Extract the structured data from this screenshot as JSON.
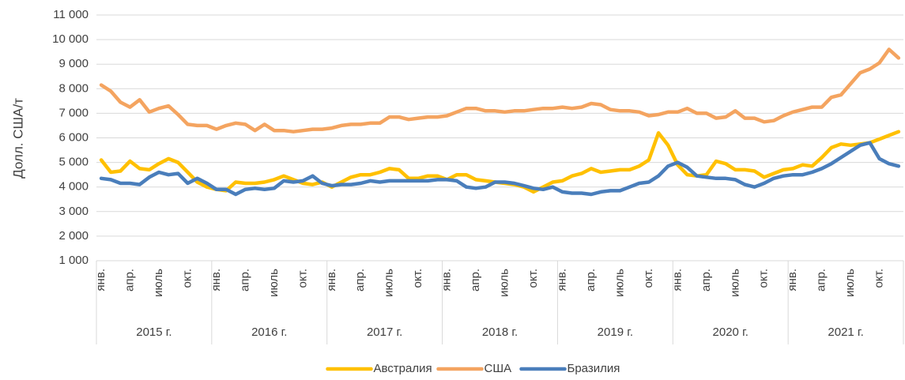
{
  "chart_data": {
    "type": "line",
    "y_label": "Долл. США/т",
    "ylim": [
      1000,
      11000
    ],
    "yticks": [
      {
        "value": 1000,
        "label": "1 000"
      },
      {
        "value": 2000,
        "label": "2 000"
      },
      {
        "value": 3000,
        "label": "3 000"
      },
      {
        "value": 4000,
        "label": "4 000"
      },
      {
        "value": 5000,
        "label": "5 000"
      },
      {
        "value": 6000,
        "label": "6 000"
      },
      {
        "value": 7000,
        "label": "7 000"
      },
      {
        "value": 8000,
        "label": "8 000"
      },
      {
        "value": 9000,
        "label": "9 000"
      },
      {
        "value": 10000,
        "label": "10 000"
      },
      {
        "value": 11000,
        "label": "11 000"
      }
    ],
    "grid": true,
    "legend": "bottom",
    "groups": [
      "2015 г.",
      "2016 г.",
      "2017 г.",
      "2018 г.",
      "2019 г.",
      "2020 г.",
      "2021 г."
    ],
    "categories": [
      "янв.",
      null,
      null,
      "апр.",
      null,
      null,
      "июль",
      null,
      null,
      "окт.",
      null,
      null,
      "янв.",
      null,
      null,
      "апр.",
      null,
      null,
      "июль",
      null,
      null,
      "окт.",
      null,
      null,
      "янв.",
      null,
      null,
      "апр.",
      null,
      null,
      "июль",
      null,
      null,
      "окт.",
      null,
      null,
      "янв.",
      null,
      null,
      "апр.",
      null,
      null,
      "июль",
      null,
      null,
      "окт.",
      null,
      null,
      "янв.",
      null,
      null,
      "апр.",
      null,
      null,
      "июль",
      null,
      null,
      "окт.",
      null,
      null,
      "янв.",
      null,
      null,
      "апр.",
      null,
      null,
      "июль",
      null,
      null,
      "окт.",
      null,
      null,
      "янв.",
      null,
      null,
      "апр.",
      null,
      null,
      "июль",
      null,
      null,
      "окт.",
      null,
      null
    ],
    "series": [
      {
        "name": "Австралия",
        "color": "#ffc000",
        "values": [
          5100,
          4600,
          4650,
          5050,
          4750,
          4700,
          4950,
          5150,
          5000,
          4600,
          4200,
          4000,
          3900,
          3850,
          4200,
          4150,
          4150,
          4200,
          4300,
          4450,
          4300,
          4150,
          4100,
          4200,
          4000,
          4200,
          4400,
          4500,
          4500,
          4600,
          4750,
          4700,
          4350,
          4350,
          4450,
          4450,
          4300,
          4500,
          4500,
          4300,
          4250,
          4200,
          4150,
          4100,
          4000,
          3800,
          4000,
          4200,
          4250,
          4450,
          4550,
          4750,
          4600,
          4650,
          4700,
          4700,
          4850,
          5100,
          6200,
          5700,
          4900,
          4500,
          4450,
          4500,
          5050,
          4950,
          4700,
          4700,
          4650,
          4400,
          4550,
          4700,
          4750,
          4900,
          4850,
          5200,
          5600,
          5750,
          5700,
          5750,
          5800,
          5950,
          6100,
          6250
        ]
      },
      {
        "name": "США",
        "color": "#f4a460",
        "values": [
          8150,
          7900,
          7450,
          7250,
          7550,
          7050,
          7200,
          7300,
          6950,
          6550,
          6500,
          6500,
          6350,
          6500,
          6600,
          6550,
          6300,
          6550,
          6300,
          6300,
          6250,
          6300,
          6350,
          6350,
          6400,
          6500,
          6550,
          6550,
          6600,
          6600,
          6850,
          6850,
          6750,
          6800,
          6850,
          6850,
          6900,
          7050,
          7200,
          7200,
          7100,
          7100,
          7050,
          7100,
          7100,
          7150,
          7200,
          7200,
          7250,
          7200,
          7250,
          7400,
          7350,
          7150,
          7100,
          7100,
          7050,
          6900,
          6950,
          7050,
          7050,
          7200,
          7000,
          7000,
          6800,
          6850,
          7100,
          6800,
          6800,
          6650,
          6700,
          6900,
          7050,
          7150,
          7250,
          7250,
          7650,
          7750,
          8200,
          8650,
          8800,
          9050,
          9600,
          9250
        ]
      },
      {
        "name": "Бразилия",
        "color": "#4a7ebb",
        "values": [
          4350,
          4300,
          4150,
          4150,
          4100,
          4400,
          4600,
          4500,
          4550,
          4150,
          4350,
          4150,
          3900,
          3900,
          3700,
          3900,
          3950,
          3900,
          3950,
          4250,
          4200,
          4250,
          4450,
          4150,
          4050,
          4100,
          4100,
          4150,
          4250,
          4200,
          4250,
          4250,
          4250,
          4250,
          4250,
          4300,
          4300,
          4250,
          4000,
          3950,
          4000,
          4200,
          4200,
          4150,
          4050,
          3950,
          3900,
          4000,
          3800,
          3750,
          3750,
          3700,
          3800,
          3850,
          3850,
          4000,
          4150,
          4200,
          4450,
          4850,
          5000,
          4800,
          4450,
          4400,
          4350,
          4350,
          4300,
          4100,
          4000,
          4150,
          4350,
          4450,
          4500,
          4500,
          4600,
          4750,
          4950,
          5200,
          5450,
          5700,
          5800,
          5150,
          4950,
          4850
        ]
      }
    ]
  }
}
